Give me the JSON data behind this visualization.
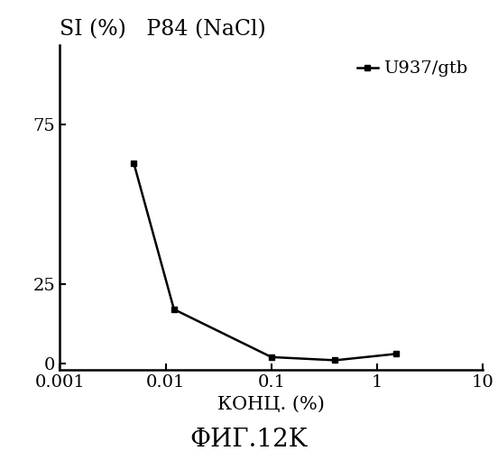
{
  "title": "SI (%)   P84 (NaCl)",
  "xlabel": "КОНЦ. (%)",
  "footer": "ФИГ.12K",
  "legend_label": "U937/gtb",
  "x_data": [
    0.005,
    0.012,
    0.1,
    0.4,
    1.5
  ],
  "y_data": [
    63,
    17,
    2,
    1,
    3
  ],
  "line_color": "#000000",
  "marker": "s",
  "marker_size": 5,
  "xlim": [
    0.001,
    10
  ],
  "ylim": [
    -2,
    100
  ],
  "yticks": [
    0,
    25,
    75
  ],
  "xticks": [
    0.001,
    0.01,
    0.1,
    1,
    10
  ],
  "xticklabels": [
    "0.001",
    "0.01",
    "0.1",
    "1",
    "10"
  ],
  "background_color": "#ffffff",
  "title_fontsize": 17,
  "label_fontsize": 15,
  "tick_fontsize": 14,
  "footer_fontsize": 20,
  "legend_fontsize": 14
}
